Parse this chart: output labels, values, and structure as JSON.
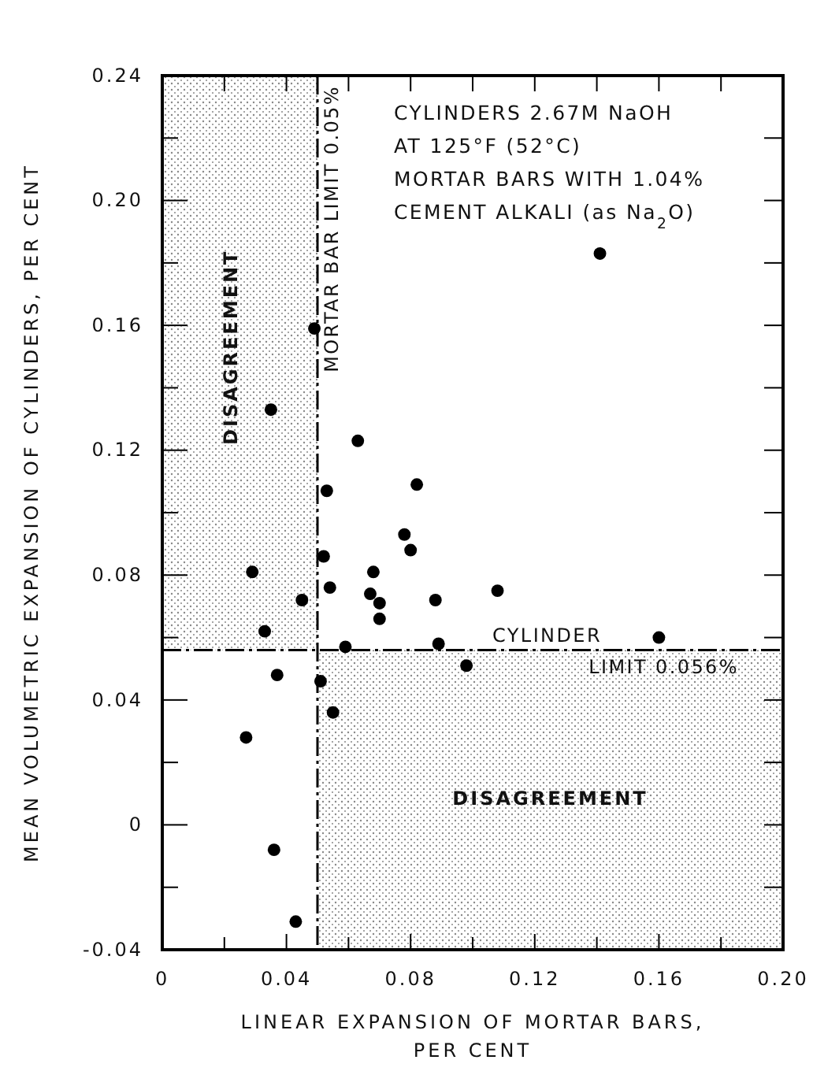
{
  "chart_data": {
    "type": "scatter",
    "xlabel": "LINEAR EXPANSION OF MORTAR BARS, PER CENT",
    "ylabel": "MEAN VOLUMETRIC EXPANSION OF CYLINDERS, PER CENT",
    "annotations": [
      "CYLINDERS 2.67M NaOH",
      "AT 125°F (52°C)",
      "MORTAR BARS WITH 1.04%",
      "CEMENT ALKALI (as Na$_{2}$O)"
    ],
    "xlim": [
      0,
      0.2
    ],
    "ylim": [
      -0.04,
      0.24
    ],
    "xticks": [
      0,
      {
        "value": 0.02,
        "label": null
      },
      0.04,
      {
        "value": 0.06,
        "label": null
      },
      0.08,
      {
        "value": 0.1,
        "label": null
      },
      0.12,
      {
        "value": 0.14,
        "label": null
      },
      0.16,
      {
        "value": 0.18,
        "label": null
      },
      {
        "value": 0.2,
        "label": "0.20"
      }
    ],
    "yticks": [
      -0.04,
      {
        "value": -0.02,
        "label": null
      },
      0,
      {
        "value": 0.02,
        "label": null
      },
      0.04,
      {
        "value": 0.06,
        "label": null
      },
      0.08,
      {
        "value": 0.1,
        "label": null
      },
      0.12,
      {
        "value": 0.14,
        "label": null
      },
      0.16,
      {
        "value": 0.18,
        "label": null
      },
      {
        "value": 0.2,
        "label": "0.20"
      },
      {
        "value": 0.22,
        "label": null
      },
      0.24
    ],
    "ref_lines": [
      {
        "axis": "x",
        "value": 0.05,
        "label": "MORTAR BAR LIMIT 0.05%",
        "line_style": "dashed"
      },
      {
        "axis": "y",
        "value": 0.056,
        "label": "CYLINDER LIMIT 0.056%",
        "line_style": "dashed"
      }
    ],
    "bands": [
      {
        "axis": "x",
        "from": 0,
        "to": 0.05,
        "label": "DISAGREEMENT",
        "color": "#888888"
      },
      {
        "axis": "y",
        "from": -0.04,
        "to": 0.056,
        "label": "DISAGREEMENT",
        "color": "#888888"
      }
    ],
    "marker": "circle",
    "series": [
      {
        "color": "#000000",
        "x": [
          0.049,
          0.035,
          0.063,
          0.053,
          0.082,
          0.141,
          0.078,
          0.08,
          0.052,
          0.029,
          0.068,
          0.054,
          0.045,
          0.067,
          0.07,
          0.07,
          0.088,
          0.033,
          0.059,
          0.037,
          0.051,
          0.055,
          0.027,
          0.036,
          0.043,
          0.108,
          0.089,
          0.098,
          0.16
        ],
        "values": [
          0.159,
          0.133,
          0.123,
          0.107,
          0.109,
          0.183,
          0.093,
          0.088,
          0.086,
          0.081,
          0.081,
          0.076,
          0.072,
          0.074,
          0.071,
          0.066,
          0.072,
          0.062,
          0.057,
          0.048,
          0.046,
          0.036,
          0.028,
          -0.008,
          -0.031,
          0.075,
          0.058,
          0.051,
          0.06
        ]
      }
    ]
  }
}
